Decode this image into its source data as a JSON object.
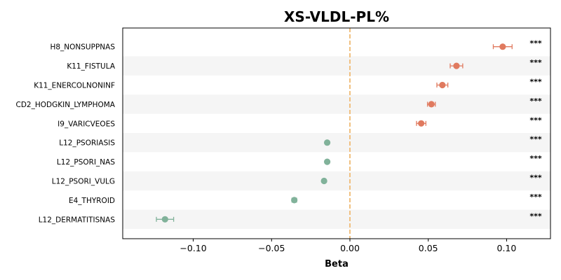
{
  "chart_data": {
    "type": "scatter",
    "subtype": "forest-plot",
    "title": "XS-VLDL-PL%",
    "xlabel": "Beta",
    "ylabel": "",
    "xlim": [
      -0.145,
      0.128
    ],
    "xticks": [
      -0.1,
      -0.05,
      0.0,
      0.05,
      0.1
    ],
    "xtick_labels": [
      "−0.10",
      "−0.05",
      "0.00",
      "0.05",
      "0.10"
    ],
    "reference_line": {
      "x": 0.0,
      "color": "#f0c080",
      "style": "dashed"
    },
    "colors": {
      "positive": "#e07a5f",
      "negative": "#81b29a",
      "band": "#f5f5f5"
    },
    "grid": false,
    "legend": "none",
    "points": [
      {
        "label": "H8_NONSUPPNAS",
        "beta": 0.0975,
        "ci_low": 0.0915,
        "ci_high": 0.1035,
        "sig": "***"
      },
      {
        "label": "K11_FISTULA",
        "beta": 0.068,
        "ci_low": 0.064,
        "ci_high": 0.072,
        "sig": "***"
      },
      {
        "label": "K11_ENERCOLNONINF",
        "beta": 0.059,
        "ci_low": 0.0555,
        "ci_high": 0.0625,
        "sig": "***"
      },
      {
        "label": "CD2_HODGKIN_LYMPHOMA",
        "beta": 0.052,
        "ci_low": 0.0495,
        "ci_high": 0.0545,
        "sig": "***"
      },
      {
        "label": "I9_VARICVEOES",
        "beta": 0.0455,
        "ci_low": 0.0425,
        "ci_high": 0.0485,
        "sig": "***"
      },
      {
        "label": "L12_PSORIASIS",
        "beta": -0.0145,
        "ci_low": -0.0155,
        "ci_high": -0.0135,
        "sig": "***"
      },
      {
        "label": "L12_PSORI_NAS",
        "beta": -0.0145,
        "ci_low": -0.0155,
        "ci_high": -0.0135,
        "sig": "***"
      },
      {
        "label": "L12_PSORI_VULG",
        "beta": -0.0165,
        "ci_low": -0.0175,
        "ci_high": -0.0155,
        "sig": "***"
      },
      {
        "label": "E4_THYROID",
        "beta": -0.0355,
        "ci_low": -0.037,
        "ci_high": -0.034,
        "sig": "***"
      },
      {
        "label": "L12_DERMATITISNAS",
        "beta": -0.118,
        "ci_low": -0.1235,
        "ci_high": -0.1125,
        "sig": "***"
      }
    ]
  }
}
